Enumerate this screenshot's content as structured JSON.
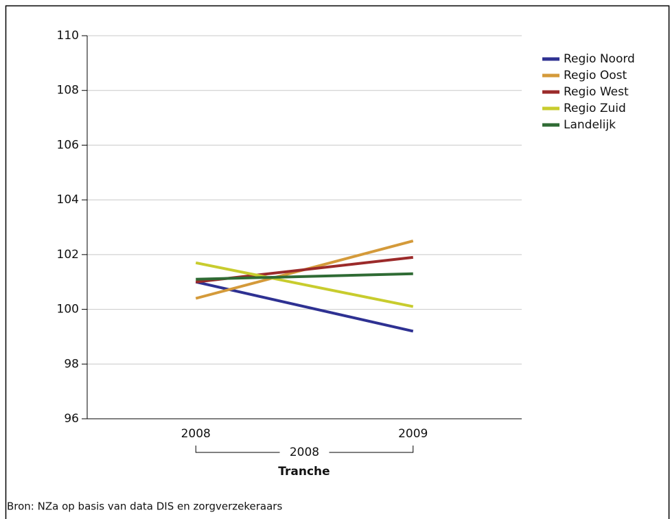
{
  "chart_data": {
    "type": "line",
    "categories": [
      "2008",
      "2009"
    ],
    "x_group": "2008",
    "x_label": "Tranche",
    "source": "Bron: NZa op basis van data DIS  en zorgverzekeraars",
    "series": [
      {
        "name": "Regio Noord",
        "color": "#2e3192",
        "values": [
          101.0,
          99.2
        ]
      },
      {
        "name": "Regio Oost",
        "color": "#d49a3a",
        "values": [
          100.4,
          102.5
        ]
      },
      {
        "name": "Regio West",
        "color": "#9b2a2a",
        "values": [
          101.0,
          101.9
        ]
      },
      {
        "name": "Regio Zuid",
        "color": "#c8cc2e",
        "values": [
          101.7,
          100.1
        ]
      },
      {
        "name": "Landelijk",
        "color": "#2f6b34",
        "values": [
          101.1,
          101.3
        ]
      }
    ],
    "ylim": [
      96,
      110
    ],
    "yticks": [
      96,
      98,
      100,
      102,
      104,
      106,
      108,
      110
    ],
    "grid": true
  }
}
